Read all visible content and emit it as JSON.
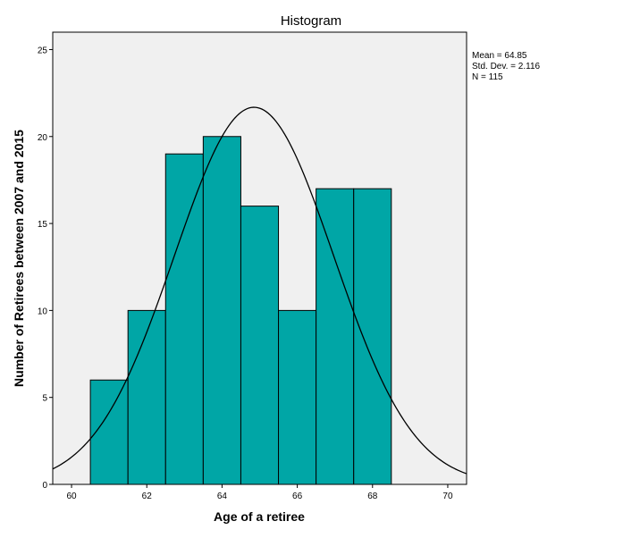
{
  "chart_data": {
    "type": "bar",
    "subtype": "histogram",
    "title": "Histogram",
    "xlabel": "Age of a retiree",
    "ylabel": "Number of Retirees between 2007 and 2015",
    "xlim": [
      59.5,
      70.5
    ],
    "ylim": [
      0,
      26
    ],
    "xticks": [
      60,
      62,
      64,
      66,
      68,
      70
    ],
    "yticks": [
      0,
      5,
      10,
      15,
      20,
      25
    ],
    "bins": [
      {
        "start": 60.5,
        "end": 61.5,
        "count": 6
      },
      {
        "start": 61.5,
        "end": 62.5,
        "count": 10
      },
      {
        "start": 62.5,
        "end": 63.5,
        "count": 19
      },
      {
        "start": 63.5,
        "end": 64.5,
        "count": 20
      },
      {
        "start": 64.5,
        "end": 65.5,
        "count": 16
      },
      {
        "start": 65.5,
        "end": 66.5,
        "count": 10
      },
      {
        "start": 66.5,
        "end": 67.5,
        "count": 17
      },
      {
        "start": 67.5,
        "end": 68.5,
        "count": 17
      }
    ],
    "normal_curve": {
      "mean": 64.85,
      "sd": 2.116,
      "n": 115,
      "bin_width": 1
    },
    "stats_text": [
      "Mean = 64.85",
      "Std. Dev. = 2.116",
      "N = 115"
    ],
    "colors": {
      "bar": "#00a6a6",
      "plot_bg": "#f0f0f0",
      "curve": "#000000"
    }
  }
}
